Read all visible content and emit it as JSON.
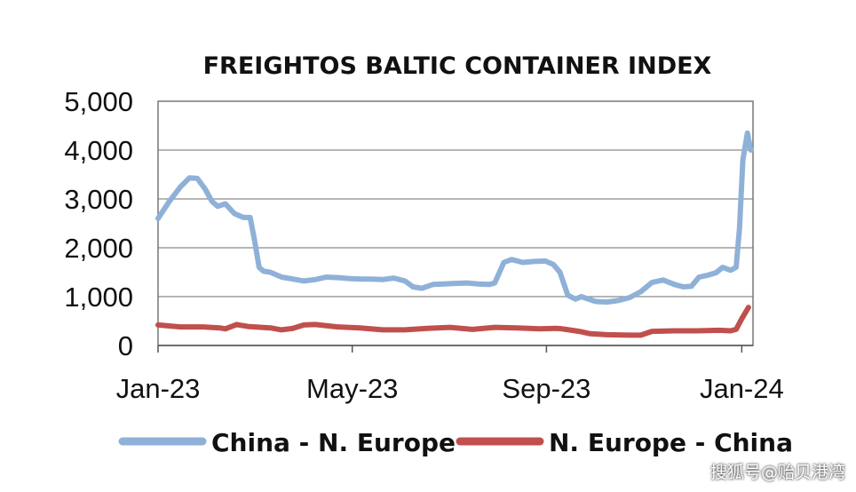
{
  "chart_data": {
    "type": "line",
    "title": "FREIGHTOS BALTIC CONTAINER INDEX",
    "xlabel": "",
    "ylabel": "",
    "ylim": [
      0,
      5000
    ],
    "yticks": [
      0,
      1000,
      2000,
      3000,
      4000,
      5000
    ],
    "ytick_labels": [
      "0",
      "1,000",
      "2,000",
      "3,000",
      "4,000",
      "5,000"
    ],
    "xlim": [
      0,
      53
    ],
    "xticks": [
      0,
      17.3,
      34.6,
      52
    ],
    "xtick_labels": [
      "Jan-23",
      "May-23",
      "Sep-23",
      "Jan-24"
    ],
    "grid": "horizontal",
    "legend_position": "bottom",
    "series": [
      {
        "name": "China - N. Europe",
        "color": "#8fb1d8",
        "x": [
          0,
          1,
          2,
          2.8,
          3.5,
          4.2,
          4.8,
          5.3,
          6,
          6.8,
          7.6,
          8.2,
          8.6,
          9,
          9.4,
          10,
          11,
          12,
          13,
          14,
          15,
          16,
          17,
          18,
          19,
          20,
          21,
          22,
          22.7,
          23.5,
          24.5,
          25.5,
          26.5,
          27.5,
          28.5,
          29.5,
          30,
          30.8,
          31.5,
          32.5,
          33.5,
          34.5,
          35.2,
          35.8,
          36.5,
          37.2,
          37.7,
          38.2,
          39,
          40,
          41,
          42,
          43,
          44,
          45,
          46,
          46.8,
          47.5,
          48.2,
          49,
          49.7,
          50.3,
          51,
          51.5,
          51.8,
          52.1,
          52.5,
          52.8
        ],
        "values": [
          2600,
          2950,
          3250,
          3430,
          3420,
          3200,
          2950,
          2850,
          2900,
          2700,
          2620,
          2620,
          2150,
          1600,
          1520,
          1500,
          1400,
          1360,
          1320,
          1350,
          1400,
          1390,
          1370,
          1360,
          1360,
          1350,
          1380,
          1320,
          1200,
          1170,
          1250,
          1260,
          1270,
          1280,
          1260,
          1250,
          1280,
          1700,
          1760,
          1700,
          1720,
          1730,
          1660,
          1500,
          1030,
          950,
          1000,
          960,
          900,
          890,
          920,
          980,
          1100,
          1290,
          1340,
          1250,
          1200,
          1210,
          1400,
          1440,
          1490,
          1600,
          1540,
          1600,
          2400,
          3800,
          4350,
          4000
        ]
      },
      {
        "name": "N. Europe - China",
        "color": "#c0504d",
        "x": [
          0,
          2,
          4,
          5.5,
          6,
          7,
          8,
          10,
          11,
          12,
          13,
          14,
          16,
          18,
          20,
          22,
          24,
          26,
          28,
          30,
          32,
          34,
          35.5,
          36,
          37.5,
          38.5,
          40,
          42,
          43,
          44,
          46,
          48,
          50,
          51,
          51.5,
          52,
          52.6
        ],
        "values": [
          420,
          380,
          380,
          360,
          340,
          430,
          390,
          360,
          320,
          350,
          420,
          430,
          380,
          360,
          320,
          320,
          350,
          370,
          330,
          370,
          360,
          340,
          350,
          340,
          290,
          240,
          220,
          210,
          210,
          290,
          300,
          300,
          310,
          300,
          330,
          550,
          780
        ]
      }
    ]
  },
  "watermark": "搜狐号@贻贝港湾"
}
